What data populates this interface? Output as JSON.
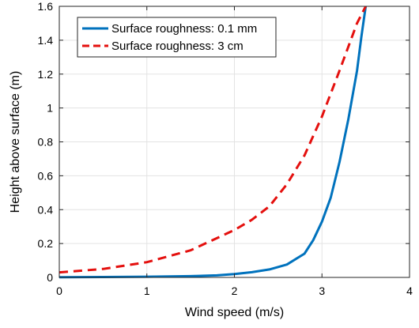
{
  "chart_data": {
    "type": "line",
    "xlabel": "Wind speed (m/s)",
    "ylabel": "Height above surface (m)",
    "xlim": [
      0,
      4
    ],
    "ylim": [
      0,
      1.6
    ],
    "xticks": [
      "0",
      "1",
      "2",
      "3",
      "4"
    ],
    "yticks": [
      "0",
      "0.2",
      "0.4",
      "0.6",
      "0.8",
      "1",
      "1.2",
      "1.4",
      "1.6"
    ],
    "grid": true,
    "legend_position": "top-left",
    "series": [
      {
        "name": "Surface roughness: 0.1 mm",
        "color": "#0072BD",
        "style": "solid",
        "x": [
          0,
          0.5,
          1.0,
          1.5,
          1.8,
          2.0,
          2.2,
          2.4,
          2.6,
          2.8,
          2.9,
          3.0,
          3.1,
          3.2,
          3.3,
          3.4,
          3.45,
          3.5
        ],
        "y": [
          0.0013,
          0.0023,
          0.0041,
          0.0074,
          0.012,
          0.02,
          0.031,
          0.047,
          0.076,
          0.14,
          0.22,
          0.33,
          0.47,
          0.68,
          0.93,
          1.22,
          1.42,
          1.6
        ]
      },
      {
        "name": "Surface roughness: 3 cm",
        "color": "#E4100E",
        "style": "dashed",
        "x": [
          0,
          0.5,
          1.0,
          1.5,
          2.0,
          2.2,
          2.4,
          2.6,
          2.8,
          3.0,
          3.2,
          3.4,
          3.5
        ],
        "y": [
          0.03,
          0.05,
          0.09,
          0.16,
          0.28,
          0.34,
          0.42,
          0.55,
          0.72,
          0.95,
          1.22,
          1.5,
          1.6
        ]
      }
    ]
  }
}
